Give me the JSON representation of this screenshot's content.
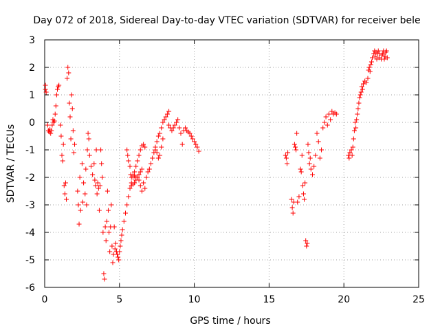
{
  "chart_data": {
    "type": "scatter",
    "title": "Day 072 of 2018, Sidereal Day-to-day VTEC variation (SDTVAR) for receiver bele",
    "xlabel": "GPS time / hours",
    "ylabel": "SDTVAR / TECUs",
    "xlim": [
      0,
      25
    ],
    "ylim": [
      -6,
      3
    ],
    "xticks": [
      "0",
      "5",
      "10",
      "15",
      "20",
      "25"
    ],
    "xtick_values": [
      0,
      5,
      10,
      15,
      20,
      25
    ],
    "yticks": [
      "3",
      "2",
      "1",
      "0",
      "-1",
      "-2",
      "-3",
      "-4",
      "-5",
      "-6"
    ],
    "ytick_values": [
      3,
      2,
      1,
      0,
      -1,
      -2,
      -3,
      -4,
      -5,
      -6
    ],
    "grid": true,
    "marker": "+",
    "color": "#ff0000",
    "series": [
      {
        "name": "SDTVAR",
        "points": [
          [
            0.05,
            1.35
          ],
          [
            0.05,
            1.2
          ],
          [
            0.1,
            1.1
          ],
          [
            0.2,
            -0.1
          ],
          [
            0.25,
            -0.3
          ],
          [
            0.3,
            -0.35
          ],
          [
            0.35,
            -0.25
          ],
          [
            0.4,
            -0.4
          ],
          [
            0.45,
            -0.3
          ],
          [
            0.5,
            -0.1
          ],
          [
            0.55,
            0.1
          ],
          [
            0.6,
            0.0
          ],
          [
            0.65,
            0.05
          ],
          [
            0.7,
            0.3
          ],
          [
            0.75,
            0.6
          ],
          [
            0.8,
            1.0
          ],
          [
            0.85,
            1.2
          ],
          [
            0.9,
            1.3
          ],
          [
            0.95,
            1.35
          ],
          [
            1.05,
            -0.1
          ],
          [
            1.1,
            -0.5
          ],
          [
            1.15,
            -1.2
          ],
          [
            1.2,
            -1.4
          ],
          [
            1.25,
            -0.8
          ],
          [
            1.3,
            -2.3
          ],
          [
            1.35,
            -2.6
          ],
          [
            1.4,
            -2.2
          ],
          [
            1.45,
            -2.8
          ],
          [
            1.5,
            1.6
          ],
          [
            1.55,
            2.0
          ],
          [
            1.6,
            1.8
          ],
          [
            1.65,
            0.7
          ],
          [
            1.7,
            0.2
          ],
          [
            1.75,
            -0.6
          ],
          [
            1.8,
            1.0
          ],
          [
            1.85,
            0.5
          ],
          [
            1.9,
            -0.3
          ],
          [
            1.95,
            -1.1
          ],
          [
            2.0,
            -0.8
          ],
          [
            2.2,
            -2.5
          ],
          [
            2.25,
            -3.0
          ],
          [
            2.3,
            -3.7
          ],
          [
            2.35,
            -2.0
          ],
          [
            2.4,
            -3.2
          ],
          [
            2.5,
            -1.5
          ],
          [
            2.55,
            -2.9
          ],
          [
            2.6,
            -2.2
          ],
          [
            2.7,
            -2.6
          ],
          [
            2.75,
            -1.7
          ],
          [
            2.8,
            -3.0
          ],
          [
            2.85,
            -1.0
          ],
          [
            2.9,
            -0.4
          ],
          [
            2.95,
            -0.6
          ],
          [
            3.0,
            -1.2
          ],
          [
            3.1,
            -1.6
          ],
          [
            3.2,
            -1.9
          ],
          [
            3.3,
            -1.5
          ],
          [
            3.35,
            -2.1
          ],
          [
            3.4,
            -2.3
          ],
          [
            3.45,
            -1.0
          ],
          [
            3.5,
            -2.6
          ],
          [
            3.55,
            -2.2
          ],
          [
            3.6,
            -2.4
          ],
          [
            3.65,
            -3.2
          ],
          [
            3.7,
            -2.3
          ],
          [
            3.75,
            -1.0
          ],
          [
            3.8,
            -1.5
          ],
          [
            3.85,
            -2.0
          ],
          [
            3.9,
            -4.0
          ],
          [
            3.95,
            -5.5
          ],
          [
            4.0,
            -5.7
          ],
          [
            4.05,
            -3.8
          ],
          [
            4.1,
            -4.3
          ],
          [
            4.15,
            -3.6
          ],
          [
            4.2,
            -2.5
          ],
          [
            4.25,
            -3.2
          ],
          [
            4.3,
            -4.0
          ],
          [
            4.35,
            -4.7
          ],
          [
            4.4,
            -3.8
          ],
          [
            4.45,
            -3.0
          ],
          [
            4.5,
            -4.5
          ],
          [
            4.55,
            -5.1
          ],
          [
            4.6,
            -4.8
          ],
          [
            4.65,
            -3.8
          ],
          [
            4.7,
            -4.6
          ],
          [
            4.75,
            -4.4
          ],
          [
            4.8,
            -4.7
          ],
          [
            4.85,
            -4.8
          ],
          [
            4.9,
            -4.9
          ],
          [
            4.95,
            -5.0
          ],
          [
            5.0,
            -4.7
          ],
          [
            5.05,
            -4.5
          ],
          [
            5.1,
            -4.3
          ],
          [
            5.15,
            -4.1
          ],
          [
            5.2,
            -3.9
          ],
          [
            5.3,
            -3.6
          ],
          [
            5.4,
            -3.3
          ],
          [
            5.5,
            -3.0
          ],
          [
            5.6,
            -2.7
          ],
          [
            5.7,
            -2.4
          ],
          [
            5.5,
            -1.0
          ],
          [
            5.55,
            -1.2
          ],
          [
            5.6,
            -1.4
          ],
          [
            5.7,
            -1.6
          ],
          [
            5.75,
            -1.9
          ],
          [
            5.8,
            -2.0
          ],
          [
            5.9,
            -1.9
          ],
          [
            6.0,
            -1.95
          ],
          [
            6.1,
            -2.0
          ],
          [
            6.2,
            -2.0
          ],
          [
            6.3,
            -2.1
          ],
          [
            6.4,
            -2.3
          ],
          [
            6.5,
            -2.5
          ],
          [
            6.6,
            -2.2
          ],
          [
            6.7,
            -2.4
          ],
          [
            6.8,
            -2.0
          ],
          [
            5.8,
            -2.2
          ],
          [
            5.9,
            -2.0
          ],
          [
            6.0,
            -1.8
          ],
          [
            6.1,
            -1.6
          ],
          [
            6.2,
            -1.4
          ],
          [
            6.3,
            -1.2
          ],
          [
            6.4,
            -1.0
          ],
          [
            6.5,
            -0.85
          ],
          [
            6.6,
            -0.8
          ],
          [
            6.7,
            -0.9
          ],
          [
            5.8,
            -2.3
          ],
          [
            5.9,
            -2.25
          ],
          [
            6.0,
            -2.2
          ],
          [
            6.1,
            -2.1
          ],
          [
            6.2,
            -2.0
          ],
          [
            6.3,
            -1.9
          ],
          [
            6.4,
            -1.8
          ],
          [
            6.5,
            -1.7
          ],
          [
            6.9,
            -1.8
          ],
          [
            7.0,
            -1.7
          ],
          [
            7.1,
            -1.5
          ],
          [
            7.2,
            -1.3
          ],
          [
            7.3,
            -1.1
          ],
          [
            7.4,
            -1.0
          ],
          [
            7.5,
            -1.1
          ],
          [
            7.6,
            -1.3
          ],
          [
            7.7,
            -1.2
          ],
          [
            7.8,
            -0.9
          ],
          [
            7.9,
            -0.6
          ],
          [
            7.4,
            -0.9
          ],
          [
            7.5,
            -0.7
          ],
          [
            7.6,
            -0.5
          ],
          [
            7.7,
            -0.4
          ],
          [
            7.8,
            -0.2
          ],
          [
            7.9,
            0.0
          ],
          [
            8.0,
            0.1
          ],
          [
            8.1,
            0.2
          ],
          [
            8.2,
            0.3
          ],
          [
            8.3,
            0.4
          ],
          [
            8.3,
            -0.1
          ],
          [
            8.4,
            -0.2
          ],
          [
            8.5,
            -0.3
          ],
          [
            8.6,
            -0.2
          ],
          [
            8.7,
            -0.1
          ],
          [
            8.8,
            0.0
          ],
          [
            8.9,
            0.1
          ],
          [
            9.0,
            -0.2
          ],
          [
            9.1,
            -0.4
          ],
          [
            9.2,
            -0.8
          ],
          [
            9.3,
            -0.3
          ],
          [
            9.4,
            -0.2
          ],
          [
            9.5,
            -0.3
          ],
          [
            9.6,
            -0.35
          ],
          [
            9.7,
            -0.4
          ],
          [
            9.8,
            -0.5
          ],
          [
            9.9,
            -0.6
          ],
          [
            10.0,
            -0.7
          ],
          [
            10.1,
            -0.8
          ],
          [
            10.2,
            -0.9
          ],
          [
            10.3,
            -1.05
          ],
          [
            16.1,
            -1.2
          ],
          [
            16.15,
            -1.3
          ],
          [
            16.2,
            -1.5
          ],
          [
            16.25,
            -1.1
          ],
          [
            16.5,
            -2.8
          ],
          [
            16.55,
            -3.1
          ],
          [
            16.6,
            -3.3
          ],
          [
            16.65,
            -2.9
          ],
          [
            16.7,
            -0.8
          ],
          [
            16.75,
            -0.9
          ],
          [
            16.8,
            -1.0
          ],
          [
            16.85,
            -0.4
          ],
          [
            16.9,
            -2.9
          ],
          [
            17.0,
            -2.7
          ],
          [
            17.1,
            -1.7
          ],
          [
            17.15,
            -1.8
          ],
          [
            17.2,
            -1.2
          ],
          [
            17.25,
            -2.3
          ],
          [
            17.3,
            -2.6
          ],
          [
            17.35,
            -2.8
          ],
          [
            17.4,
            -2.2
          ],
          [
            17.45,
            -4.3
          ],
          [
            17.5,
            -4.5
          ],
          [
            17.55,
            -4.4
          ],
          [
            17.6,
            -0.8
          ],
          [
            17.65,
            -1.1
          ],
          [
            17.7,
            -1.5
          ],
          [
            17.75,
            -1.3
          ],
          [
            17.8,
            -1.7
          ],
          [
            17.9,
            -1.9
          ],
          [
            18.0,
            -1.6
          ],
          [
            18.1,
            -1.2
          ],
          [
            18.2,
            -0.4
          ],
          [
            18.3,
            -0.7
          ],
          [
            18.4,
            -1.3
          ],
          [
            18.5,
            -1.0
          ],
          [
            18.6,
            -0.2
          ],
          [
            18.7,
            0.0
          ],
          [
            18.8,
            0.2
          ],
          [
            18.9,
            -0.1
          ],
          [
            19.0,
            0.3
          ],
          [
            19.1,
            0.1
          ],
          [
            19.2,
            0.4
          ],
          [
            19.3,
            0.3
          ],
          [
            19.4,
            0.35
          ],
          [
            19.5,
            0.3
          ],
          [
            20.3,
            -1.2
          ],
          [
            20.35,
            -1.3
          ],
          [
            20.4,
            -1.1
          ],
          [
            20.5,
            -1.0
          ],
          [
            20.55,
            -1.2
          ],
          [
            20.6,
            -0.9
          ],
          [
            20.65,
            -0.6
          ],
          [
            20.7,
            -0.3
          ],
          [
            20.75,
            0.0
          ],
          [
            20.8,
            -0.2
          ],
          [
            20.85,
            0.1
          ],
          [
            20.9,
            0.3
          ],
          [
            20.95,
            0.5
          ],
          [
            21.0,
            0.7
          ],
          [
            21.05,
            0.9
          ],
          [
            21.1,
            1.0
          ],
          [
            21.15,
            1.1
          ],
          [
            21.2,
            1.3
          ],
          [
            21.25,
            1.2
          ],
          [
            21.3,
            1.4
          ],
          [
            21.4,
            1.5
          ],
          [
            21.5,
            1.45
          ],
          [
            21.6,
            1.6
          ],
          [
            21.65,
            1.9
          ],
          [
            21.7,
            2.0
          ],
          [
            21.75,
            1.85
          ],
          [
            21.8,
            2.1
          ],
          [
            21.85,
            2.2
          ],
          [
            21.9,
            2.35
          ],
          [
            22.0,
            2.5
          ],
          [
            22.05,
            2.6
          ],
          [
            22.1,
            2.4
          ],
          [
            22.15,
            2.55
          ],
          [
            22.2,
            2.3
          ],
          [
            22.25,
            2.5
          ],
          [
            22.3,
            2.6
          ],
          [
            22.35,
            2.35
          ],
          [
            22.4,
            2.5
          ],
          [
            22.5,
            2.3
          ],
          [
            22.55,
            2.45
          ],
          [
            22.6,
            2.5
          ],
          [
            22.65,
            2.6
          ],
          [
            22.7,
            2.3
          ],
          [
            22.75,
            2.4
          ],
          [
            22.8,
            2.55
          ],
          [
            22.85,
            2.6
          ],
          [
            22.9,
            2.35
          ]
        ]
      }
    ]
  }
}
